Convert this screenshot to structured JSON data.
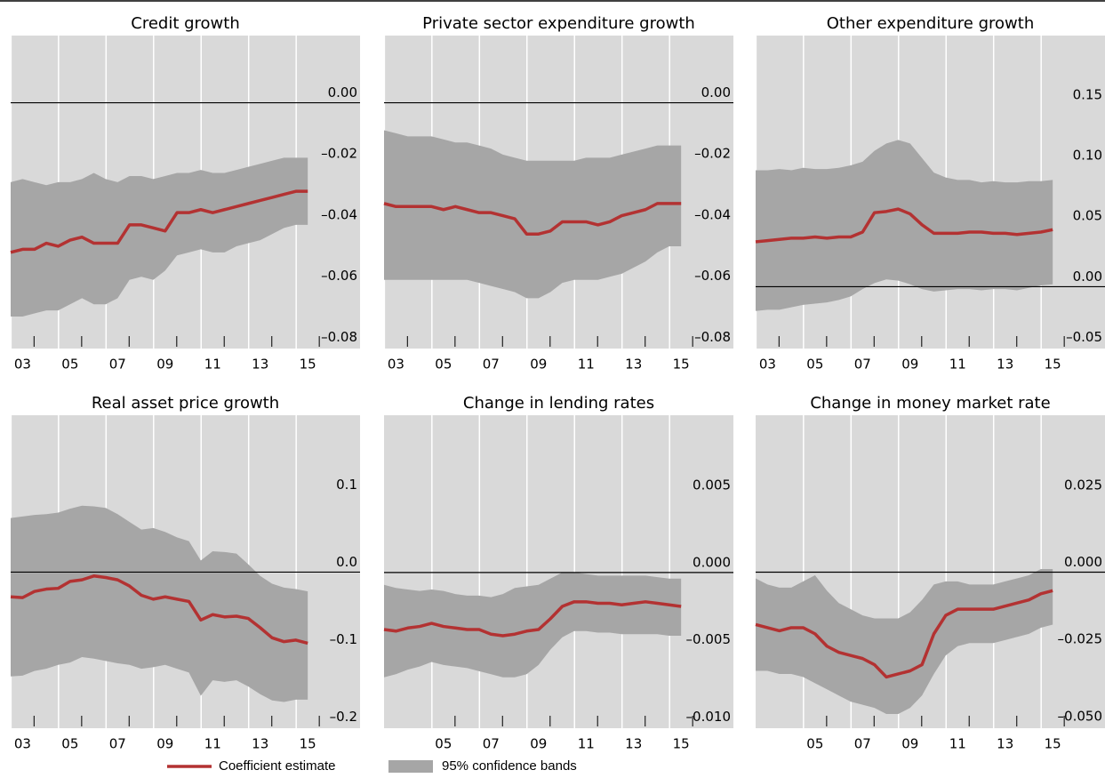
{
  "chart_data": [
    {
      "type": "line",
      "title": "Credit growth",
      "background": "#d9d9d9",
      "grid": true,
      "zero_line": true,
      "xlim": [
        2002.5,
        2017.2
      ],
      "ylim": [
        -0.0805,
        0.022
      ],
      "xticks": [
        {
          "value": 2003,
          "label": "03"
        },
        {
          "value": 2005,
          "label": "05"
        },
        {
          "value": 2007,
          "label": "07"
        },
        {
          "value": 2009,
          "label": "09"
        },
        {
          "value": 2011,
          "label": "11"
        },
        {
          "value": 2013,
          "label": "13"
        },
        {
          "value": 2015,
          "label": "15"
        }
      ],
      "yticks": [
        {
          "value": 0,
          "label": "0.00"
        },
        {
          "value": -0.02,
          "label": "–0.02"
        },
        {
          "value": -0.04,
          "label": "–0.04"
        },
        {
          "value": -0.06,
          "label": "–0.06"
        },
        {
          "value": -0.08,
          "label": "–0.08"
        }
      ],
      "x": [
        2002.5,
        2003,
        2003.5,
        2004,
        2004.5,
        2005,
        2005.5,
        2006,
        2006.5,
        2007,
        2007.5,
        2008,
        2008.5,
        2009,
        2009.5,
        2010,
        2010.5,
        2011,
        2011.5,
        2012,
        2012.5,
        2013,
        2013.5,
        2014,
        2014.5,
        2015
      ],
      "series": [
        {
          "name": "Coefficient estimate",
          "color": "#b33232",
          "values": [
            -0.049,
            -0.048,
            -0.048,
            -0.046,
            -0.047,
            -0.045,
            -0.044,
            -0.046,
            -0.046,
            -0.046,
            -0.04,
            -0.04,
            -0.041,
            -0.042,
            -0.036,
            -0.036,
            -0.035,
            -0.036,
            -0.035,
            -0.034,
            -0.033,
            -0.032,
            -0.031,
            -0.03,
            -0.029,
            -0.029
          ]
        }
      ],
      "band": {
        "name": "95% confidence bands",
        "color": "#a6a6a6",
        "upper": [
          -0.026,
          -0.025,
          -0.026,
          -0.027,
          -0.026,
          -0.026,
          -0.025,
          -0.023,
          -0.025,
          -0.026,
          -0.024,
          -0.024,
          -0.025,
          -0.024,
          -0.023,
          -0.023,
          -0.022,
          -0.023,
          -0.023,
          -0.022,
          -0.021,
          -0.02,
          -0.019,
          -0.018,
          -0.018,
          -0.018
        ],
        "lower": [
          -0.07,
          -0.07,
          -0.069,
          -0.068,
          -0.068,
          -0.066,
          -0.064,
          -0.066,
          -0.066,
          -0.064,
          -0.058,
          -0.057,
          -0.058,
          -0.055,
          -0.05,
          -0.049,
          -0.048,
          -0.049,
          -0.049,
          -0.047,
          -0.046,
          -0.045,
          -0.043,
          -0.041,
          -0.04,
          -0.04
        ]
      }
    },
    {
      "type": "line",
      "title": "Private sector expenditure growth",
      "background": "#d9d9d9",
      "grid": true,
      "zero_line": true,
      "xlim": [
        2002.5,
        2017.2
      ],
      "ylim": [
        -0.0805,
        0.022
      ],
      "xticks": [
        {
          "value": 2003,
          "label": "03"
        },
        {
          "value": 2005,
          "label": "05"
        },
        {
          "value": 2007,
          "label": "07"
        },
        {
          "value": 2009,
          "label": "09"
        },
        {
          "value": 2011,
          "label": "11"
        },
        {
          "value": 2013,
          "label": "13"
        },
        {
          "value": 2015,
          "label": "15"
        }
      ],
      "yticks": [
        {
          "value": 0,
          "label": "0.00"
        },
        {
          "value": -0.02,
          "label": "–0.02"
        },
        {
          "value": -0.04,
          "label": "–0.04"
        },
        {
          "value": -0.06,
          "label": "–0.06"
        },
        {
          "value": -0.08,
          "label": "–0.08"
        }
      ],
      "x": [
        2002.5,
        2003,
        2003.5,
        2004,
        2004.5,
        2005,
        2005.5,
        2006,
        2006.5,
        2007,
        2007.5,
        2008,
        2008.5,
        2009,
        2009.5,
        2010,
        2010.5,
        2011,
        2011.5,
        2012,
        2012.5,
        2013,
        2013.5,
        2014,
        2014.5,
        2015
      ],
      "series": [
        {
          "color": "#b33232",
          "values": [
            -0.033,
            -0.034,
            -0.034,
            -0.034,
            -0.034,
            -0.035,
            -0.034,
            -0.035,
            -0.036,
            -0.036,
            -0.037,
            -0.038,
            -0.043,
            -0.043,
            -0.042,
            -0.039,
            -0.039,
            -0.039,
            -0.04,
            -0.039,
            -0.037,
            -0.036,
            -0.035,
            -0.033,
            -0.033,
            -0.033
          ]
        }
      ],
      "band": {
        "color": "#a6a6a6",
        "upper": [
          -0.009,
          -0.01,
          -0.011,
          -0.011,
          -0.011,
          -0.012,
          -0.013,
          -0.013,
          -0.014,
          -0.015,
          -0.017,
          -0.018,
          -0.019,
          -0.019,
          -0.019,
          -0.019,
          -0.019,
          -0.018,
          -0.018,
          -0.018,
          -0.017,
          -0.016,
          -0.015,
          -0.014,
          -0.014,
          -0.014
        ],
        "lower": [
          -0.058,
          -0.058,
          -0.058,
          -0.058,
          -0.058,
          -0.058,
          -0.058,
          -0.058,
          -0.059,
          -0.06,
          -0.061,
          -0.062,
          -0.064,
          -0.064,
          -0.062,
          -0.059,
          -0.058,
          -0.058,
          -0.058,
          -0.057,
          -0.056,
          -0.054,
          -0.052,
          -0.049,
          -0.047,
          -0.047
        ]
      }
    },
    {
      "type": "line",
      "title": "Other expenditure growth",
      "background": "#d9d9d9",
      "grid": true,
      "zero_line": true,
      "xlim": [
        2002.5,
        2017.2
      ],
      "ylim": [
        -0.051,
        0.207
      ],
      "xticks": [
        {
          "value": 2003,
          "label": "03"
        },
        {
          "value": 2005,
          "label": "05"
        },
        {
          "value": 2007,
          "label": "07"
        },
        {
          "value": 2009,
          "label": "09"
        },
        {
          "value": 2011,
          "label": "11"
        },
        {
          "value": 2013,
          "label": "13"
        },
        {
          "value": 2015,
          "label": "15"
        }
      ],
      "yticks": [
        0.15,
        {
          "value": 0.1,
          "label": "0.10"
        },
        0.05,
        {
          "value": 0,
          "label": "0.00"
        },
        {
          "value": -0.05,
          "label": "–0.05"
        }
      ],
      "x": [
        2002.5,
        2003,
        2003.5,
        2004,
        2004.5,
        2005,
        2005.5,
        2006,
        2006.5,
        2007,
        2007.5,
        2008,
        2008.5,
        2009,
        2009.5,
        2010,
        2010.5,
        2011,
        2011.5,
        2012,
        2012.5,
        2013,
        2013.5,
        2014,
        2014.5,
        2015
      ],
      "series": [
        {
          "color": "#b33232",
          "values": [
            0.037,
            0.038,
            0.039,
            0.04,
            0.04,
            0.041,
            0.04,
            0.041,
            0.041,
            0.045,
            0.061,
            0.062,
            0.064,
            0.06,
            0.051,
            0.044,
            0.044,
            0.044,
            0.045,
            0.045,
            0.044,
            0.044,
            0.043,
            0.044,
            0.045,
            0.047
          ]
        }
      ],
      "band": {
        "color": "#a6a6a6",
        "upper": [
          0.096,
          0.096,
          0.097,
          0.096,
          0.098,
          0.097,
          0.097,
          0.098,
          0.1,
          0.103,
          0.112,
          0.118,
          0.121,
          0.118,
          0.106,
          0.094,
          0.09,
          0.088,
          0.088,
          0.086,
          0.087,
          0.086,
          0.086,
          0.087,
          0.087,
          0.088
        ],
        "lower": [
          -0.02,
          -0.019,
          -0.019,
          -0.017,
          -0.015,
          -0.014,
          -0.013,
          -0.011,
          -0.008,
          -0.002,
          0.003,
          0.006,
          0.005,
          0.002,
          -0.002,
          -0.004,
          -0.003,
          -0.002,
          -0.002,
          -0.003,
          -0.002,
          -0.002,
          -0.003,
          -0.001,
          0.001,
          0.002
        ]
      }
    },
    {
      "type": "line",
      "title": "Real asset price growth",
      "background": "#d9d9d9",
      "grid": true,
      "zero_line": true,
      "xlim": [
        2002.5,
        2017.2
      ],
      "ylim": [
        -0.202,
        0.203
      ],
      "xticks": [
        {
          "value": 2003,
          "label": "03"
        },
        {
          "value": 2005,
          "label": "05"
        },
        {
          "value": 2007,
          "label": "07"
        },
        {
          "value": 2009,
          "label": "09"
        },
        {
          "value": 2011,
          "label": "11"
        },
        {
          "value": 2013,
          "label": "13"
        },
        {
          "value": 2015,
          "label": "15"
        }
      ],
      "yticks": [
        0.1,
        {
          "value": 0,
          "label": "0.0"
        },
        {
          "value": -0.1,
          "label": "–0.1"
        },
        {
          "value": -0.2,
          "label": "–0.2"
        }
      ],
      "x": [
        2002.5,
        2003,
        2003.5,
        2004,
        2004.5,
        2005,
        2005.5,
        2006,
        2006.5,
        2007,
        2007.5,
        2008,
        2008.5,
        2009,
        2009.5,
        2010,
        2010.5,
        2011,
        2011.5,
        2012,
        2012.5,
        2013,
        2013.5,
        2014,
        2014.5,
        2015
      ],
      "series": [
        {
          "color": "#b33232",
          "values": [
            -0.032,
            -0.033,
            -0.025,
            -0.022,
            -0.021,
            -0.012,
            -0.01,
            -0.005,
            -0.007,
            -0.01,
            -0.018,
            -0.03,
            -0.035,
            -0.032,
            -0.035,
            -0.038,
            -0.062,
            -0.055,
            -0.058,
            -0.057,
            -0.06,
            -0.072,
            -0.085,
            -0.09,
            -0.088,
            -0.092
          ]
        }
      ],
      "band": {
        "color": "#a6a6a6",
        "upper": [
          0.07,
          0.072,
          0.074,
          0.075,
          0.077,
          0.082,
          0.086,
          0.085,
          0.083,
          0.075,
          0.065,
          0.055,
          0.057,
          0.052,
          0.045,
          0.04,
          0.015,
          0.027,
          0.026,
          0.024,
          0.01,
          -0.005,
          -0.015,
          -0.02,
          -0.022,
          -0.025
        ],
        "lower": [
          -0.135,
          -0.134,
          -0.128,
          -0.125,
          -0.12,
          -0.117,
          -0.11,
          -0.112,
          -0.115,
          -0.118,
          -0.12,
          -0.125,
          -0.123,
          -0.12,
          -0.125,
          -0.13,
          -0.16,
          -0.14,
          -0.142,
          -0.14,
          -0.148,
          -0.158,
          -0.166,
          -0.168,
          -0.165,
          -0.165
        ]
      }
    },
    {
      "type": "line",
      "title": "Change in lending rates",
      "background": "#d9d9d9",
      "grid": true,
      "zero_line": true,
      "xlim": [
        2002.5,
        2017.2
      ],
      "ylim": [
        -0.0101,
        0.0102
      ],
      "xticks": [
        {
          "value": 2005,
          "label": "05"
        },
        {
          "value": 2007,
          "label": "07"
        },
        {
          "value": 2009,
          "label": "09"
        },
        {
          "value": 2011,
          "label": "11"
        },
        {
          "value": 2013,
          "label": "13"
        },
        {
          "value": 2015,
          "label": "15"
        }
      ],
      "yticks": [
        0.005,
        {
          "value": 0,
          "label": "0.000"
        },
        {
          "value": -0.005,
          "label": "–0.005"
        },
        {
          "value": -0.01,
          "label": "–0.010"
        }
      ],
      "x": [
        2002.5,
        2003,
        2003.5,
        2004,
        2004.5,
        2005,
        2005.5,
        2006,
        2006.5,
        2007,
        2007.5,
        2008,
        2008.5,
        2009,
        2009.5,
        2010,
        2010.5,
        2011,
        2011.5,
        2012,
        2012.5,
        2013,
        2013.5,
        2014,
        2014.5,
        2015
      ],
      "series": [
        {
          "color": "#b33232",
          "values": [
            -0.0037,
            -0.0038,
            -0.0036,
            -0.0035,
            -0.0033,
            -0.0035,
            -0.0036,
            -0.0037,
            -0.0037,
            -0.004,
            -0.0041,
            -0.004,
            -0.0038,
            -0.0037,
            -0.003,
            -0.0022,
            -0.0019,
            -0.0019,
            -0.002,
            -0.002,
            -0.0021,
            -0.002,
            -0.0019,
            -0.002,
            -0.0021,
            -0.0022
          ]
        }
      ],
      "band": {
        "color": "#a6a6a6",
        "upper": [
          -0.0008,
          -0.001,
          -0.0011,
          -0.0012,
          -0.0011,
          -0.0012,
          -0.0014,
          -0.0015,
          -0.0015,
          -0.0016,
          -0.0014,
          -0.001,
          -0.0009,
          -0.0008,
          -0.0004,
          0.0,
          0.0,
          -0.0001,
          -0.0002,
          -0.0002,
          -0.0002,
          -0.0002,
          -0.0002,
          -0.0003,
          -0.0004,
          -0.0004
        ],
        "lower": [
          -0.0068,
          -0.0066,
          -0.0063,
          -0.0061,
          -0.0058,
          -0.006,
          -0.0061,
          -0.0062,
          -0.0064,
          -0.0066,
          -0.0068,
          -0.0068,
          -0.0066,
          -0.006,
          -0.005,
          -0.0042,
          -0.0038,
          -0.0038,
          -0.0039,
          -0.0039,
          -0.004,
          -0.004,
          -0.004,
          -0.004,
          -0.0041,
          -0.0041
        ]
      }
    },
    {
      "type": "line",
      "title": "Change in money market rate",
      "background": "#d9d9d9",
      "grid": true,
      "zero_line": true,
      "xlim": [
        2002.5,
        2017.2
      ],
      "ylim": [
        -0.0506,
        0.0509
      ],
      "xticks": [
        {
          "value": 2005,
          "label": "05"
        },
        {
          "value": 2007,
          "label": "07"
        },
        {
          "value": 2009,
          "label": "09"
        },
        {
          "value": 2011,
          "label": "11"
        },
        {
          "value": 2013,
          "label": "13"
        },
        {
          "value": 2015,
          "label": "15"
        }
      ],
      "yticks": [
        0.025,
        {
          "value": 0,
          "label": "0.000"
        },
        {
          "value": -0.025,
          "label": "–0.025"
        },
        {
          "value": -0.05,
          "label": "–0.050"
        }
      ],
      "x": [
        2002.5,
        2003,
        2003.5,
        2004,
        2004.5,
        2005,
        2005.5,
        2006,
        2006.5,
        2007,
        2007.5,
        2008,
        2008.5,
        2009,
        2009.5,
        2010,
        2010.5,
        2011,
        2011.5,
        2012,
        2012.5,
        2013,
        2013.5,
        2014,
        2014.5,
        2015
      ],
      "series": [
        {
          "color": "#b33232",
          "values": [
            -0.017,
            -0.018,
            -0.019,
            -0.018,
            -0.018,
            -0.02,
            -0.024,
            -0.026,
            -0.027,
            -0.028,
            -0.03,
            -0.034,
            -0.033,
            -0.032,
            -0.03,
            -0.02,
            -0.014,
            -0.012,
            -0.012,
            -0.012,
            -0.012,
            -0.011,
            -0.01,
            -0.009,
            -0.007,
            -0.006
          ]
        }
      ],
      "band": {
        "color": "#a6a6a6",
        "upper": [
          -0.002,
          -0.004,
          -0.005,
          -0.005,
          -0.003,
          -0.001,
          -0.006,
          -0.01,
          -0.012,
          -0.014,
          -0.015,
          -0.015,
          -0.015,
          -0.013,
          -0.009,
          -0.004,
          -0.003,
          -0.003,
          -0.004,
          -0.004,
          -0.004,
          -0.003,
          -0.002,
          -0.001,
          0.001,
          0.001
        ],
        "lower": [
          -0.032,
          -0.032,
          -0.033,
          -0.033,
          -0.034,
          -0.036,
          -0.038,
          -0.04,
          -0.042,
          -0.043,
          -0.044,
          -0.046,
          -0.046,
          -0.044,
          -0.04,
          -0.033,
          -0.027,
          -0.024,
          -0.023,
          -0.023,
          -0.023,
          -0.022,
          -0.021,
          -0.02,
          -0.018,
          -0.017
        ]
      }
    }
  ]
}
